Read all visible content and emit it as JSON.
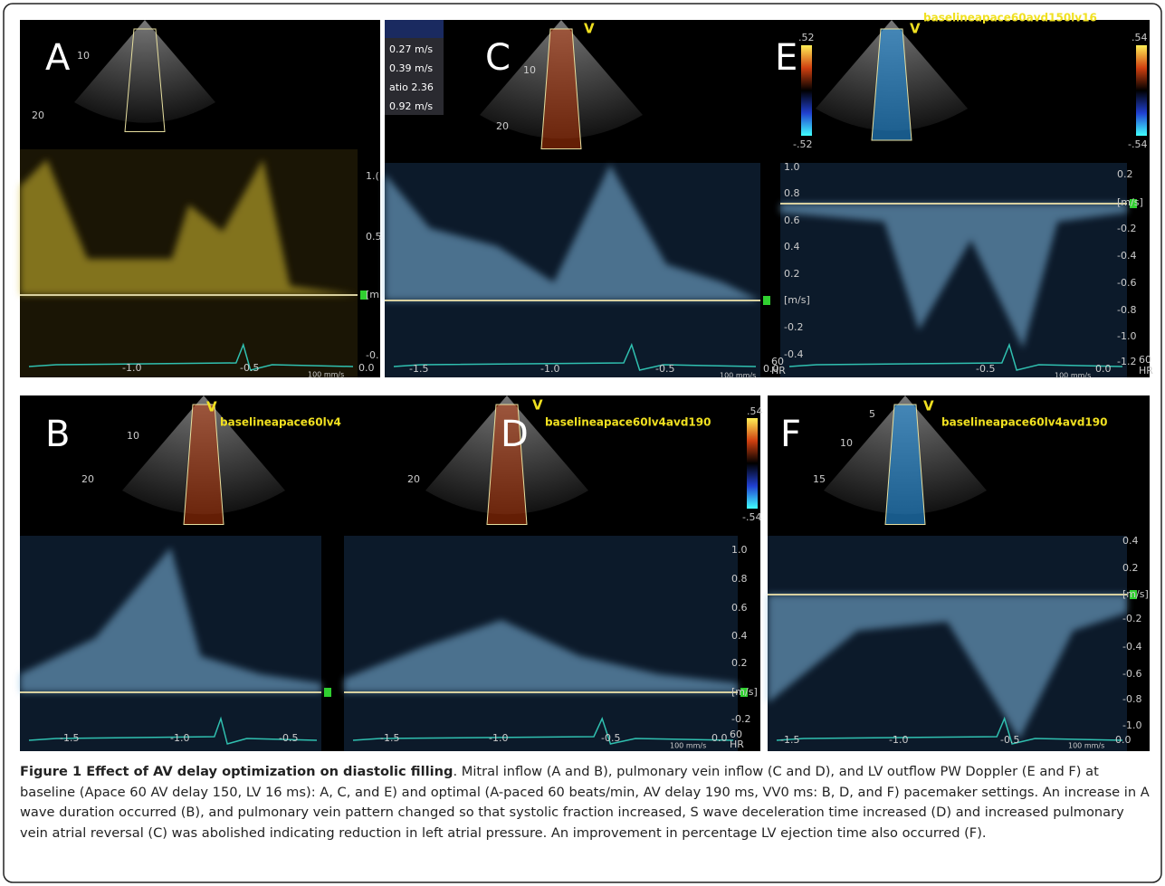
{
  "panels": [
    {
      "texts": [
        "A",
        "10",
        "20",
        "1.(",
        "0.5",
        "[m",
        "-0.",
        "-1.0",
        "-0.5",
        "0.0",
        "100 mm/s"
      ]
    },
    {
      "texts": [
        "C",
        "10",
        "20",
        "V",
        "0.27 m/s",
        "0.39 m/s",
        "atio  2.36",
        "0.92 m/s",
        "1.0",
        "0.8",
        "0.6",
        "0.4",
        "0.2",
        "[m/s]",
        "-0.2",
        "-0.4",
        "60",
        "HR",
        "-1.5",
        "-1.0",
        "-0.5",
        "0.0",
        "100 mm/s"
      ]
    },
    {
      "texts": [
        "E",
        "V",
        "baselineapace60avd150lv16",
        ".52",
        "-.52",
        ".54",
        "-.54",
        "0.2",
        "[m/s]",
        "-0.2",
        "-0.4",
        "-0.6",
        "-0.8",
        "-1.0",
        "-1.2",
        "60",
        "HR",
        "-0.5",
        "0.0",
        "100 mm/s"
      ]
    },
    {
      "texts": [
        "B",
        "V",
        "baselineapace60lv4",
        "10",
        "20",
        "-1.5",
        "-1.0",
        "-0.5"
      ]
    },
    {
      "texts": [
        "D",
        "V",
        "baselineapace60lv4avd190",
        "20",
        ".54",
        "-.54",
        "1.0",
        "0.8",
        "0.6",
        "0.4",
        "0.2",
        "[m/s]",
        "-0.2",
        "60",
        "HR",
        "-1.5",
        "-1.0",
        "-0.5",
        "0.0",
        "100 mm/s"
      ]
    },
    {
      "texts": [
        "F",
        "V",
        "baselineapace60lv4avd190",
        "5",
        "10",
        "15",
        "0.4",
        "0.2",
        "[m/s]",
        "-0.2",
        "-0.4",
        "-0.6",
        "-0.8",
        "-1.0",
        "-1.5",
        "-1.0",
        "-0.5",
        "0.0",
        "100 mm/s"
      ]
    }
  ],
  "caption": {
    "title": "Figure 1 Effect of AV delay optimization on diastolic filling",
    "text": ". Mitral inflow (A and B), pulmonary vein inflow (C and D), and LV outflow PW Doppler (E and F) at baseline (Apace 60 AV delay 150, LV 16 ms): A, C, and E) and optimal (A-paced 60 beats/min, AV delay 190 ms, VV0 ms: B, D, and F) pacemaker settings. An increase in A wave duration occurred (B), and pulmonary vein pattern changed so that systolic fraction increased, S wave deceleration time increased (D) and increased pulmonary vein atrial reversal (C) was abolished indicating reduction in left atrial pressure. An improvement in percentage LV ejection time also occurred (F)."
  }
}
